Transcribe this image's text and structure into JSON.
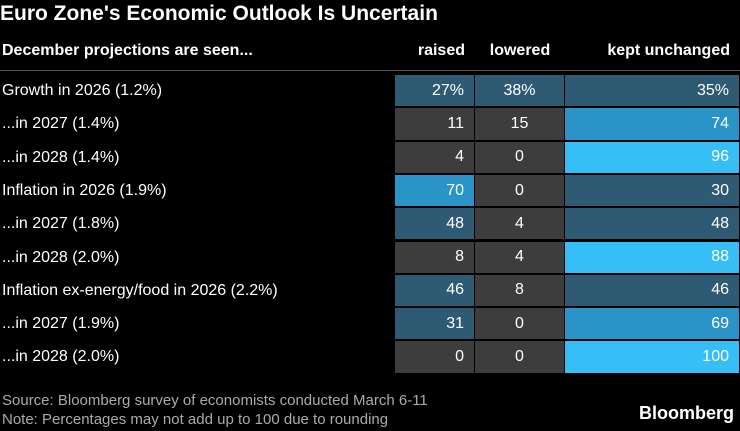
{
  "title": "Euro Zone's Economic Outlook Is Uncertain",
  "table": {
    "columns": [
      "December projections are seen...",
      "raised",
      "lowered",
      "kept unchanged"
    ],
    "rows": [
      {
        "label": "Growth in 2026 (1.2%)",
        "values": [
          27,
          38,
          35
        ],
        "value_labels": [
          "27%",
          "38%",
          "35%"
        ],
        "colors": [
          "#2e5a74",
          "#2e5a74",
          "#2e5a74"
        ]
      },
      {
        "label": "...in 2027 (1.4%)",
        "values": [
          11,
          15,
          74
        ],
        "colors": [
          "#3d3d3d",
          "#3d3d3d",
          "#2a93c8"
        ]
      },
      {
        "label": "...in 2028 (1.4%)",
        "values": [
          4,
          0,
          96
        ],
        "colors": [
          "#3d3d3d",
          "#3d3d3d",
          "#36bff7"
        ]
      },
      {
        "label": "Inflation in 2026 (1.9%)",
        "values": [
          70,
          0,
          30
        ],
        "colors": [
          "#2a93c8",
          "#3d3d3d",
          "#2e5a74"
        ]
      },
      {
        "label": "...in 2027 (1.8%)",
        "values": [
          48,
          4,
          48
        ],
        "colors": [
          "#2e5a74",
          "#3d3d3d",
          "#2e5a74"
        ]
      },
      {
        "label": "...in 2028 (2.0%)",
        "values": [
          8,
          4,
          88
        ],
        "colors": [
          "#3d3d3d",
          "#3d3d3d",
          "#36bff7"
        ]
      },
      {
        "label": "Inflation ex-energy/food in 2026 (2.2%)",
        "values": [
          46,
          8,
          46
        ],
        "colors": [
          "#2e5a74",
          "#3d3d3d",
          "#2e5a74"
        ]
      },
      {
        "label": "...in 2027 (1.9%)",
        "values": [
          31,
          0,
          69
        ],
        "colors": [
          "#2e5a74",
          "#3d3d3d",
          "#2a93c8"
        ]
      },
      {
        "label": "...in 2028 (2.0%)",
        "values": [
          0,
          0,
          100
        ],
        "colors": [
          "#3d3d3d",
          "#3d3d3d",
          "#36bff7"
        ]
      }
    ]
  },
  "footer": {
    "source": "Source: Bloomberg survey of economists conducted March 6-11",
    "note": "Note: Percentages may not add up to 100 due to rounding",
    "brand": "Bloomberg"
  }
}
